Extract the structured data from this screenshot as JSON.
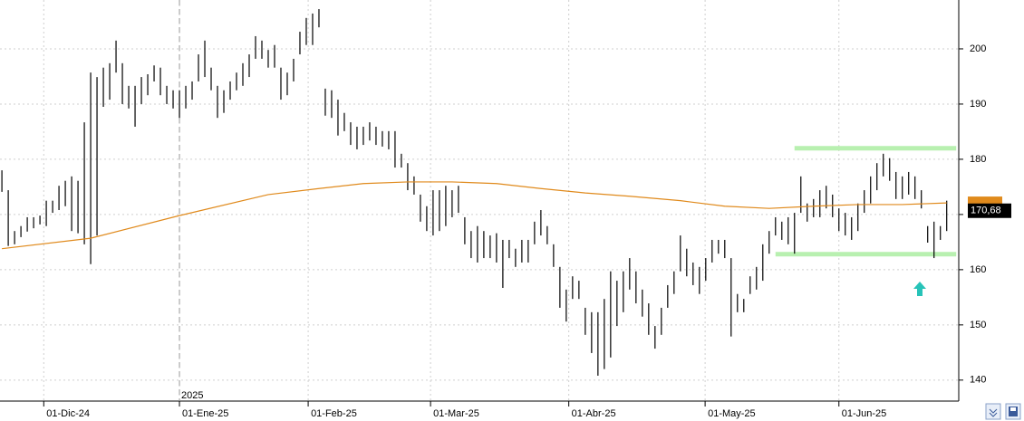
{
  "chart_data": {
    "type": "hilo",
    "bar_color": "#000000",
    "high": [
      178.0,
      174.4,
      167.0,
      167.9,
      169.5,
      169.5,
      169.8,
      172.5,
      172.5,
      175.2,
      176.1,
      176.9,
      176.1,
      186.7,
      195.7,
      194.9,
      196.6,
      197.4,
      201.5,
      197.4,
      193.3,
      193.3,
      194.9,
      195.4,
      197.0,
      196.6,
      193.3,
      192.5,
      192.5,
      193.3,
      194.1,
      199.0,
      201.5,
      196.6,
      193.3,
      192.5,
      194.1,
      195.7,
      197.4,
      199.0,
      202.3,
      201.5,
      199.8,
      200.7,
      196.6,
      195.7,
      198.2,
      203.1,
      205.6,
      206.4,
      207.2,
      192.8,
      192.5,
      190.8,
      188.4,
      186.7,
      185.9,
      185.9,
      186.7,
      185.9,
      185.1,
      185.1,
      185.1,
      181.0,
      179.3,
      176.9,
      173.6,
      171.5,
      174.4,
      174.4,
      175.2,
      174.4,
      175.2,
      169.5,
      167.0,
      167.9,
      167.0,
      166.2,
      166.6,
      165.4,
      165.4,
      163.8,
      165.4,
      165.4,
      168.7,
      170.8,
      167.9,
      164.6,
      160.5,
      156.4,
      158.8,
      158.0,
      153.1,
      152.3,
      152.3,
      154.7,
      159.7,
      158.0,
      159.7,
      162.1,
      159.7,
      156.4,
      153.9,
      149.8,
      153.1,
      157.2,
      159.7,
      166.2,
      163.8,
      161.3,
      160.5,
      162.1,
      165.4,
      165.4,
      165.4,
      162.1,
      155.6,
      154.7,
      158.8,
      160.5,
      164.6,
      167.0,
      169.5,
      168.7,
      169.5,
      170.3,
      176.9,
      172.0,
      172.8,
      174.4,
      175.2,
      173.6,
      171.1,
      170.3,
      169.5,
      172.0,
      174.4,
      176.9,
      179.3,
      181.0,
      180.2,
      177.7,
      176.9,
      177.7,
      176.9,
      174.4,
      167.9,
      168.7,
      167.9,
      172.5
    ],
    "low": [
      174.1,
      164.3,
      164.6,
      165.9,
      166.9,
      167.5,
      168.2,
      167.9,
      170.3,
      170.8,
      171.5,
      167.0,
      166.6,
      164.6,
      161.0,
      166.2,
      189.5,
      190.8,
      195.7,
      190.0,
      189.2,
      185.9,
      190.0,
      191.6,
      194.1,
      191.6,
      190.0,
      189.2,
      187.5,
      189.2,
      190.8,
      194.1,
      194.9,
      192.5,
      187.5,
      188.4,
      190.8,
      192.5,
      193.3,
      194.9,
      198.2,
      198.2,
      196.6,
      196.6,
      190.8,
      191.6,
      194.1,
      199.0,
      200.7,
      200.7,
      203.9,
      187.9,
      187.5,
      184.3,
      185.1,
      182.6,
      181.8,
      182.6,
      183.4,
      182.6,
      182.3,
      181.8,
      178.5,
      178.5,
      174.4,
      173.6,
      168.7,
      167.0,
      166.2,
      167.0,
      167.9,
      169.5,
      170.3,
      164.6,
      162.1,
      161.3,
      162.1,
      162.1,
      161.3,
      156.7,
      162.1,
      160.5,
      161.3,
      161.3,
      164.6,
      166.2,
      164.6,
      160.5,
      153.1,
      150.6,
      154.7,
      154.7,
      148.2,
      144.9,
      140.8,
      142.0,
      144.1,
      149.8,
      152.3,
      156.4,
      153.9,
      151.5,
      148.2,
      145.7,
      148.2,
      153.1,
      155.6,
      159.7,
      158.8,
      157.2,
      155.6,
      158.0,
      161.3,
      162.9,
      162.1,
      147.9,
      152.3,
      152.3,
      155.6,
      156.4,
      158.0,
      162.9,
      166.2,
      165.4,
      164.6,
      162.9,
      170.3,
      168.7,
      169.5,
      169.5,
      171.1,
      169.5,
      167.0,
      166.2,
      165.4,
      167.0,
      170.3,
      172.0,
      174.4,
      176.9,
      176.1,
      172.8,
      172.8,
      173.6,
      172.8,
      171.1,
      164.9,
      162.1,
      165.4,
      167.0
    ],
    "moving_average": {
      "color": "#e08a1c",
      "x": [
        0,
        14,
        28,
        42,
        50,
        57,
        64,
        71,
        78,
        85,
        92,
        99,
        107,
        114,
        121,
        128,
        135,
        142,
        149
      ],
      "values": [
        163.8,
        165.7,
        169.8,
        173.6,
        174.7,
        175.6,
        175.9,
        175.9,
        175.6,
        174.7,
        173.9,
        173.3,
        172.5,
        171.5,
        171.1,
        171.5,
        171.8,
        171.8,
        172.1
      ]
    },
    "levels": [
      {
        "color": "#b8f0b0",
        "x": [
          125,
          150.5
        ],
        "values": [
          182,
          182
        ]
      },
      {
        "color": "#b8f0b0",
        "x": [
          122,
          150.5
        ],
        "values": [
          162.8,
          162.8
        ]
      }
    ],
    "last_price": {
      "value": 170.68,
      "label": "170,68"
    },
    "year_label": "2025",
    "xlim": [
      -0.3,
      150.9
    ],
    "xticks": [
      {
        "value": 6.6,
        "label": "01-Dic-24"
      },
      {
        "value": 28,
        "label": "01-Ene-25"
      },
      {
        "value": 48.3,
        "label": "01-Feb-25"
      },
      {
        "value": 67.6,
        "label": "01-Mar-25"
      },
      {
        "value": 89.4,
        "label": "01-Abr-25"
      },
      {
        "value": 110.9,
        "label": "01-May-25"
      },
      {
        "value": 132,
        "label": "01-Jun-25"
      }
    ],
    "ylim": [
      136.2,
      208.85
    ],
    "yticks": [
      140,
      150,
      160,
      170,
      180,
      190,
      200
    ],
    "grid": true
  }
}
